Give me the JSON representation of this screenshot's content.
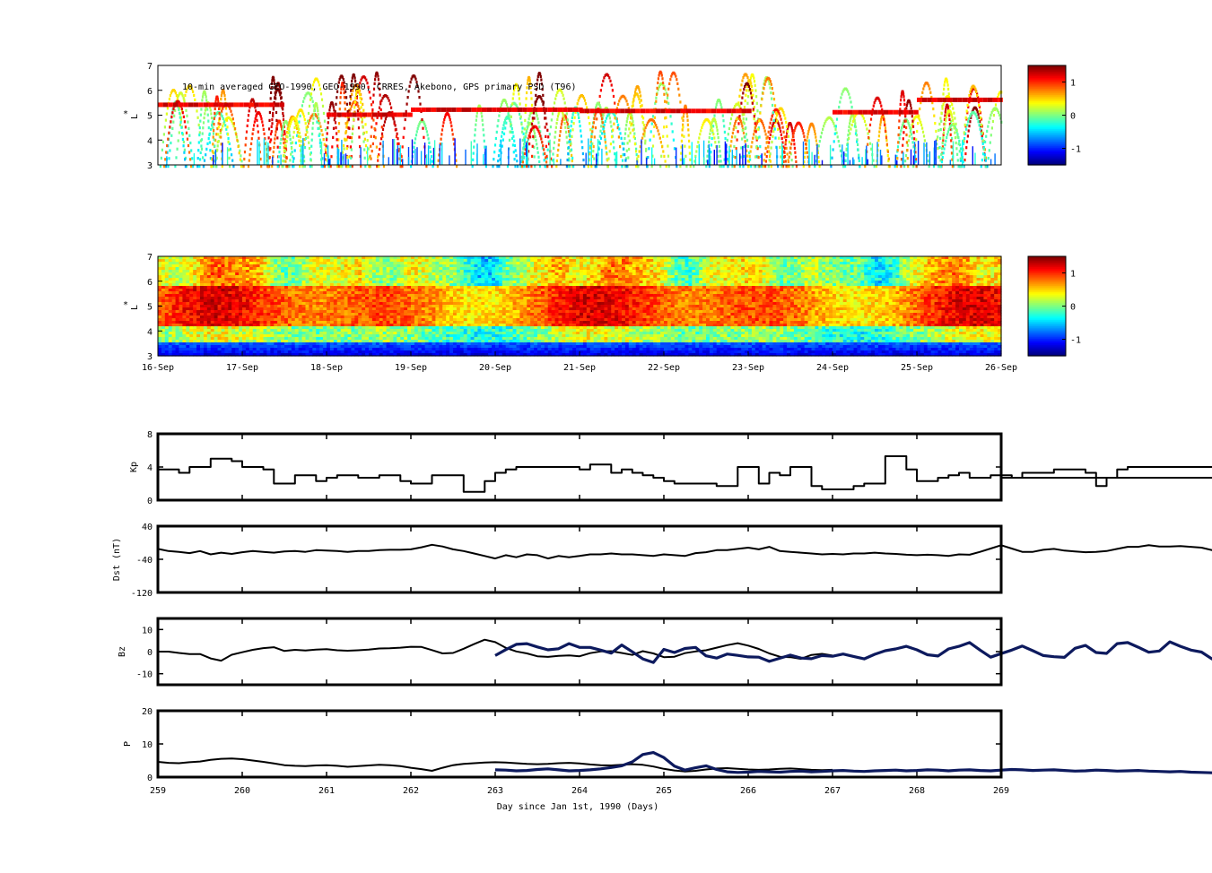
{
  "annotation": "10-min averaged GEO-1990, GEO-1990, CRRES, Akebono, GPS  primary PSD (T96)",
  "colors": {
    "axis": "#000000",
    "black_line": "#000000",
    "navy_line": "#0d1a5e"
  },
  "colormap": "jet",
  "colorbar_ticks": [
    "1",
    "0",
    "-1"
  ],
  "colorbar_tick_values": [
    1,
    0,
    -1
  ],
  "colorbar_range": [
    -1.5,
    1.5
  ],
  "date_ticks": [
    "16-Sep",
    "17-Sep",
    "18-Sep",
    "19-Sep",
    "20-Sep",
    "21-Sep",
    "22-Sep",
    "23-Sep",
    "24-Sep",
    "25-Sep",
    "26-Sep"
  ],
  "day_ticks": [
    "259",
    "260",
    "261",
    "262",
    "263",
    "264",
    "265",
    "266",
    "267",
    "268",
    "269"
  ],
  "xlabel": "Day since Jan 1st, 1990 (Days)",
  "chart_data": [
    {
      "type": "heatmap",
      "name": "primary-psd",
      "ylabel_sup": "*",
      "ylabel": "L",
      "ylim": [
        3,
        7
      ],
      "yticks": [
        "3",
        "4",
        "5",
        "6",
        "7"
      ],
      "xlim": [
        259,
        269
      ],
      "note": "sparse satellite passes of log PSD along orbit tracks",
      "grid": false
    },
    {
      "type": "heatmap",
      "name": "assimilated-psd",
      "ylabel_sup": "*",
      "ylabel": "L",
      "ylim": [
        3,
        7
      ],
      "yticks": [
        "3",
        "4",
        "5",
        "6",
        "7"
      ],
      "xlim": [
        259,
        269
      ],
      "grid": false
    },
    {
      "type": "line",
      "name": "kp",
      "ylabel": "Kp",
      "ylim": [
        0,
        8
      ],
      "yticks": [
        "0",
        "4",
        "8"
      ],
      "x_range": [
        259,
        269
      ],
      "x_step": 0.125,
      "series": [
        {
          "color": "#000000",
          "values": [
            3.7,
            3.7,
            3.3,
            4.0,
            4.0,
            5.0,
            5.0,
            4.7,
            4.0,
            4.0,
            3.7,
            2.0,
            2.0,
            3.0,
            3.0,
            2.3,
            2.7,
            3.0,
            3.0,
            2.7,
            2.7,
            3.0,
            3.0,
            2.3,
            2.0,
            2.0,
            3.0,
            3.0,
            3.0,
            1.0,
            1.0,
            2.3,
            3.3,
            3.7,
            4.0,
            4.0,
            4.0,
            4.0,
            4.0,
            4.0,
            3.7,
            4.3,
            4.3,
            3.3,
            3.7,
            3.3,
            3.0,
            2.7,
            2.3,
            2.0,
            2.0,
            2.0,
            2.0,
            1.7,
            1.7,
            4.0,
            4.0,
            2.0,
            3.3,
            3.0,
            4.0,
            4.0,
            1.7,
            1.3,
            1.3,
            1.3,
            1.7,
            2.0,
            2.0,
            5.3,
            5.3,
            3.7,
            2.3,
            2.3,
            2.7,
            3.0,
            3.3,
            2.7,
            2.7,
            3.0,
            3.0,
            2.7,
            3.3,
            3.3,
            3.3,
            3.7,
            3.7,
            3.7,
            3.3,
            1.7,
            2.7,
            3.7,
            4.0,
            4.0,
            4.0,
            4.0,
            4.0,
            4.0,
            4.0,
            4.0,
            4.0,
            3.7,
            3.0,
            2.7,
            2.7,
            2.3,
            1.7,
            2.0,
            1.3,
            1.3,
            1.3,
            1.3,
            3.0,
            3.7,
            3.7,
            2.3,
            2.3,
            3.0,
            4.0,
            4.0,
            4.0,
            3.0,
            2.7,
            2.0,
            2.0,
            3.0,
            3.0,
            3.0,
            3.0,
            2.7,
            2.3,
            2.0,
            1.3,
            1.0,
            1.3,
            2.0,
            3.3,
            3.3,
            3.0,
            2.7
          ]
        }
      ]
    },
    {
      "type": "line",
      "name": "dst",
      "ylabel": "Dst (nT)",
      "ylim": [
        -120,
        40
      ],
      "yticks": [
        "-120",
        "-40",
        "40"
      ],
      "x_range": [
        259,
        269
      ],
      "x_step": 0.125,
      "series": [
        {
          "color": "#000000",
          "values": [
            -15,
            -20,
            -22,
            -25,
            -20,
            -28,
            -24,
            -27,
            -23,
            -20,
            -22,
            -24,
            -21,
            -20,
            -22,
            -18,
            -19,
            -20,
            -22,
            -20,
            -20,
            -18,
            -17,
            -17,
            -16,
            -11,
            -5,
            -9,
            -16,
            -20,
            -26,
            -32,
            -38,
            -30,
            -35,
            -28,
            -30,
            -38,
            -32,
            -35,
            -32,
            -28,
            -28,
            -26,
            -28,
            -28,
            -30,
            -32,
            -28,
            -30,
            -32,
            -25,
            -23,
            -18,
            -18,
            -15,
            -12,
            -16,
            -10,
            -20,
            -22,
            -24,
            -26,
            -28,
            -27,
            -28,
            -26,
            -26,
            -24,
            -26,
            -27,
            -29,
            -30,
            -29,
            -30,
            -32,
            -28,
            -29,
            -22,
            -14,
            -6,
            -14,
            -22,
            -22,
            -17,
            -15,
            -19,
            -21,
            -23,
            -22,
            -20,
            -15,
            -10,
            -10,
            -6,
            -9,
            -9,
            -8,
            -10,
            -12,
            -18,
            -22,
            -24,
            -22,
            -20,
            -19,
            -17,
            -19,
            -22,
            -23,
            -24,
            -22,
            -26,
            -30,
            -32,
            -30,
            -28,
            -24,
            -22,
            -20,
            -18,
            -14,
            -12,
            -10,
            -8,
            -4,
            -6,
            -9,
            -11,
            -11,
            -10,
            -8,
            -7,
            -6,
            -5,
            -4,
            -5,
            -5,
            -6,
            -8,
            -9
          ]
        }
      ]
    },
    {
      "type": "line",
      "name": "bz",
      "ylabel": "Bz",
      "ylim": [
        -15,
        15
      ],
      "yticks": [
        "-10",
        "0",
        "10"
      ],
      "x_range": [
        259,
        269
      ],
      "x_step": 0.125,
      "series": [
        {
          "name": "",
          "color": "#000000",
          "x_range": [
            259,
            263
          ],
          "values": [
            0.0,
            0.0,
            -0.6,
            -1.1,
            -1.1,
            -3.1,
            -4.1,
            -1.4,
            -0.3,
            0.8,
            1.6,
            2.0,
            0.3,
            0.8,
            0.5,
            0.9,
            1.1,
            0.6,
            0.4,
            0.6,
            0.9,
            1.4,
            1.5,
            1.8,
            2.2,
            2.1,
            0.7,
            -0.8,
            -0.6,
            1.3,
            3.4,
            5.4,
            4.3,
            1.7,
            0.1,
            -0.8,
            -2.1,
            -2.4,
            -1.9,
            -1.7,
            -2.1,
            -0.7,
            0.1,
            0.2,
            -0.6,
            -1.5,
            0.2,
            -0.8,
            -2.5,
            -2.3,
            -0.7,
            0.1,
            0.6,
            1.8,
            2.9,
            3.8,
            2.7,
            1.2,
            -0.8,
            -2.3,
            -2.5,
            -3.3,
            -1.5,
            -1.0,
            -1.8
          ]
        },
        {
          "name": "",
          "color": "#0d1a5e",
          "x_range": [
            263,
            269
          ],
          "values": [
            -1.8,
            0.9,
            3.3,
            3.6,
            2.1,
            0.8,
            1.3,
            3.6,
            1.9,
            1.9,
            0.7,
            -0.7,
            3.0,
            -0.1,
            -3.3,
            -4.9,
            1.0,
            -0.4,
            1.4,
            1.9,
            -1.9,
            -2.9,
            -1.1,
            -1.7,
            -2.4,
            -2.5,
            -4.4,
            -3.0,
            -1.6,
            -2.9,
            -3.2,
            -1.8,
            -2.1,
            -1.1,
            -2.2,
            -3.3,
            -1.2,
            0.4,
            1.2,
            2.4,
            0.8,
            -1.4,
            -2.0,
            1.2,
            2.4,
            4.1,
            0.7,
            -2.5,
            -0.9,
            0.7,
            2.5,
            0.4,
            -1.8,
            -2.3,
            -2.6,
            1.5,
            2.8,
            -0.4,
            -0.8,
            3.6,
            4.1,
            2.0,
            -0.3,
            0.3,
            4.4,
            2.4,
            0.7,
            -0.2,
            -3.3,
            -3.8,
            -4.4,
            -4.8,
            -5.6,
            -3.1,
            -4.1,
            -3.4,
            -0.7,
            0.3,
            2.4,
            5.8,
            4.6,
            -1.2,
            2.1,
            -1.7,
            1.7,
            -3.4,
            -3.5,
            0.6,
            1.8,
            3.2,
            2.7,
            4.1,
            2.6,
            1.6,
            0.5,
            2.4,
            0.8,
            -1.1,
            -0.7,
            -2.4,
            -3.1,
            -2.2,
            -2.9,
            -2.0,
            -0.6,
            -1.2,
            -1.0,
            -0.5,
            -1.9,
            -1.3,
            -2.3,
            0.9,
            1.7,
            -1.1,
            -1.0,
            -0.6,
            1.1,
            1.6,
            3.6,
            4.6,
            5.2,
            3.2,
            3.7,
            1.1,
            1.3,
            -0.5,
            -0.4,
            0.7,
            -0.8,
            0.4,
            -1.1,
            0.8,
            0.7,
            1.2,
            -0.6,
            -1.4,
            -1.6,
            -2.2,
            -1.8,
            -2.0,
            -1.7,
            -1.6,
            -1.4,
            -0.9,
            -1.2,
            -1.4,
            -1.6,
            -1.8,
            -1.5,
            -1.3,
            -1.2,
            -1.5,
            -1.8,
            -2.0,
            -1.9,
            -1.5,
            -1.2,
            -0.9,
            -0.8,
            -0.6,
            -0.8,
            -0.9,
            -0.7,
            -0.5,
            -0.4,
            -0.6,
            -1.0,
            -1.6,
            -2.7,
            -3.9,
            -4.5,
            -4.0,
            -2.8,
            -1.2,
            0.8,
            2.4,
            3.6,
            3.7,
            2.9,
            2.0,
            1.3,
            0.8,
            0.4,
            0.1,
            -0.3,
            -0.7,
            -0.9,
            -0.7,
            -0.2,
            0.3,
            0.9,
            1.5,
            1.8,
            1.3,
            0.6,
            -0.1,
            -0.8,
            -1.3,
            -1.5,
            -1.5,
            -1.2,
            -0.8,
            -0.3,
            0.2,
            0.8,
            1.4,
            2.0,
            1.8,
            1.1,
            0.2,
            -0.7,
            -1.6,
            -2.2,
            -2.0,
            -1.2,
            -0.2,
            0.9,
            1.8,
            2.5
          ]
        }
      ]
    },
    {
      "type": "line",
      "name": "pressure",
      "ylabel": "P",
      "ylim": [
        0,
        20
      ],
      "yticks": [
        "0",
        "10",
        "20"
      ],
      "x_range": [
        259,
        269
      ],
      "x_step": 0.125,
      "series": [
        {
          "name": "",
          "color": "#000000",
          "x_range": [
            259,
            263
          ],
          "values": [
            4.6,
            4.3,
            4.2,
            4.5,
            4.7,
            5.2,
            5.5,
            5.6,
            5.4,
            5.0,
            4.6,
            4.1,
            3.6,
            3.4,
            3.3,
            3.5,
            3.6,
            3.4,
            3.1,
            3.3,
            3.5,
            3.7,
            3.6,
            3.3,
            2.8,
            2.4,
            1.9,
            2.8,
            3.6,
            4.0,
            4.2,
            4.4,
            4.5,
            4.4,
            4.2,
            4.0,
            3.9,
            4.0,
            4.2,
            4.3,
            4.1,
            3.8,
            3.6,
            3.5,
            3.7,
            3.9,
            3.7,
            3.2,
            2.5,
            2.0,
            1.7,
            1.9,
            2.3,
            2.6,
            2.7,
            2.5,
            2.3,
            2.2,
            2.3,
            2.5,
            2.6,
            2.4,
            2.2,
            2.1,
            2.2
          ]
        },
        {
          "name": "",
          "color": "#0d1a5e",
          "x_range": [
            263,
            269
          ],
          "values": [
            2.2,
            2.1,
            1.9,
            2.0,
            2.3,
            2.5,
            2.2,
            1.9,
            2.0,
            2.2,
            2.5,
            2.9,
            3.4,
            4.6,
            6.8,
            7.4,
            5.9,
            3.3,
            2.1,
            2.8,
            3.4,
            2.3,
            1.6,
            1.4,
            1.5,
            1.7,
            1.6,
            1.5,
            1.7,
            1.8,
            1.6,
            1.7,
            1.9,
            2.0,
            1.8,
            1.7,
            1.9,
            2.0,
            2.1,
            1.9,
            2.0,
            2.2,
            2.1,
            1.9,
            2.1,
            2.2,
            2.0,
            1.9,
            2.1,
            2.3,
            2.2,
            2.0,
            2.1,
            2.2,
            2.0,
            1.8,
            1.9,
            2.1,
            2.0,
            1.8,
            1.9,
            2.0,
            1.8,
            1.7,
            1.6,
            1.7,
            1.5,
            1.4,
            1.3,
            1.2,
            1.0,
            0.9,
            1.1,
            1.2,
            1.0,
            0.9,
            1.0,
            1.1,
            1.3,
            1.6,
            2.2,
            3.4,
            5.4,
            7.8,
            9.0,
            7.2,
            4.8,
            3.2,
            2.5,
            2.4,
            2.6,
            2.5,
            2.4,
            2.5,
            2.6,
            2.5,
            2.4,
            2.2,
            2.0,
            1.8,
            1.7,
            1.6,
            1.5,
            1.6,
            1.7,
            1.8,
            1.9,
            2.0,
            2.1,
            2.2,
            2.1,
            2.0,
            1.9,
            1.8,
            1.9,
            2.0,
            2.1,
            2.2,
            2.0,
            1.9,
            1.8,
            1.7,
            1.8,
            1.9,
            2.0,
            2.2,
            2.3,
            2.1,
            2.0,
            1.9,
            1.8,
            1.7,
            1.8,
            1.9,
            2.0,
            2.0,
            1.9,
            1.8,
            1.7,
            1.8,
            1.9,
            2.0,
            2.1,
            2.0,
            1.9,
            1.8,
            1.7,
            1.6,
            1.7,
            1.8,
            1.9,
            2.0,
            2.1,
            2.2,
            2.3,
            2.5,
            2.8,
            3.4,
            5.2,
            7.7,
            8.9,
            7.4,
            5.2,
            3.6,
            2.8,
            2.6,
            2.7,
            2.8,
            2.6,
            2.5,
            2.6,
            2.7,
            2.6,
            2.5,
            2.4,
            2.3,
            2.4,
            2.5,
            2.4,
            2.3,
            2.2,
            2.1,
            2.0,
            1.9,
            2.0,
            2.1,
            2.0,
            1.9,
            1.8,
            1.7,
            1.6,
            1.7,
            1.8,
            1.9,
            1.8,
            1.7,
            1.6,
            1.5,
            1.4,
            1.5,
            1.6,
            1.7,
            1.6,
            1.5,
            1.4,
            1.3,
            1.4,
            1.5,
            1.6,
            1.5,
            1.4,
            1.3,
            1.2,
            1.3,
            1.4,
            1.5,
            1.6,
            1.7,
            1.8,
            1.9,
            2.0,
            1.9,
            1.8
          ]
        }
      ]
    }
  ]
}
